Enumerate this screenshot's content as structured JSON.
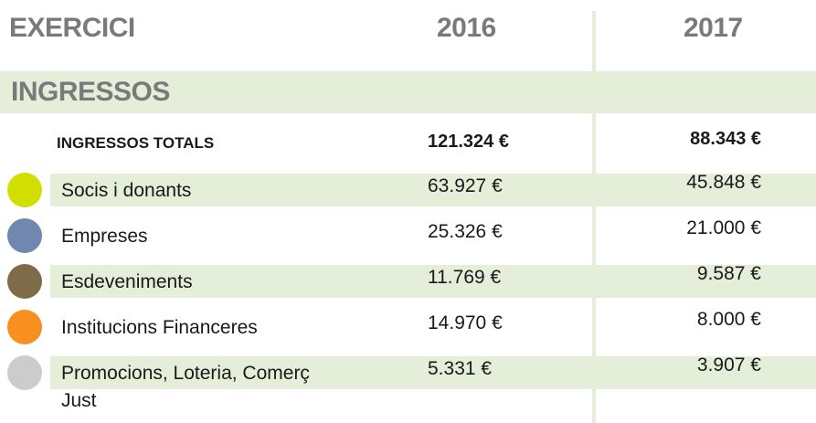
{
  "header": {
    "title": "EXERCICI",
    "years": [
      "2016",
      "2017"
    ]
  },
  "section": {
    "title": "INGRESSOS"
  },
  "totals": {
    "label": "INGRESSOS TOTALS",
    "values": [
      "121.324 €",
      "88.343 €"
    ]
  },
  "rows": [
    {
      "label": "Socis i donants",
      "color": "#d2de00",
      "values": [
        "63.927 €",
        "45.848 €"
      ]
    },
    {
      "label": "Empreses",
      "color": "#7087b0",
      "values": [
        "25.326 €",
        "21.000 €"
      ]
    },
    {
      "label": "Esdeveniments",
      "color": "#7e6b48",
      "values": [
        "11.769 €",
        "9.587 €"
      ]
    },
    {
      "label": "Institucions Financeres",
      "color": "#f7901e",
      "values": [
        "14.970 €",
        "8.000 €"
      ]
    },
    {
      "label": "Promocions, Loteria, Comerç Just",
      "color": "#cccccc",
      "values": [
        "5.331 €",
        "3.907 €"
      ]
    }
  ]
}
